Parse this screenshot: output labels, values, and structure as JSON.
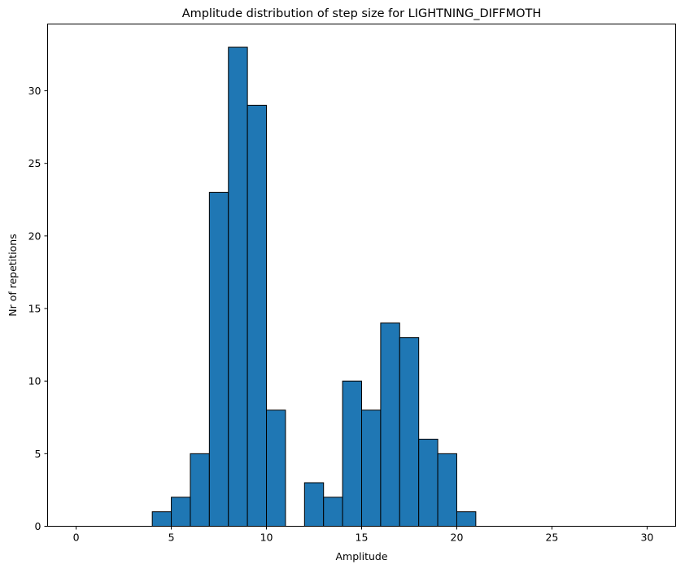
{
  "chart_data": {
    "type": "bar",
    "title": "Amplitude distribution of step size for LIGHTNING_DIFFMOTH",
    "xlabel": "Amplitude",
    "ylabel": "Nr of repetitions",
    "xlim": [
      -1.5,
      31.5
    ],
    "ylim": [
      0,
      34.6
    ],
    "xticks": [
      0,
      5,
      10,
      15,
      20,
      25,
      30
    ],
    "yticks": [
      0,
      5,
      10,
      15,
      20,
      25,
      30
    ],
    "grid": false,
    "bar_color": "#1f77b4",
    "edge_color": "#000000",
    "bins": [
      {
        "x0": 4,
        "x1": 5,
        "value": 1
      },
      {
        "x0": 5,
        "x1": 6,
        "value": 2
      },
      {
        "x0": 6,
        "x1": 7,
        "value": 5
      },
      {
        "x0": 7,
        "x1": 8,
        "value": 23
      },
      {
        "x0": 8,
        "x1": 9,
        "value": 33
      },
      {
        "x0": 9,
        "x1": 10,
        "value": 29
      },
      {
        "x0": 10,
        "x1": 11,
        "value": 8
      },
      {
        "x0": 12,
        "x1": 13,
        "value": 3
      },
      {
        "x0": 13,
        "x1": 14,
        "value": 2
      },
      {
        "x0": 14,
        "x1": 15,
        "value": 10
      },
      {
        "x0": 15,
        "x1": 16,
        "value": 8
      },
      {
        "x0": 16,
        "x1": 17,
        "value": 14
      },
      {
        "x0": 17,
        "x1": 18,
        "value": 13
      },
      {
        "x0": 18,
        "x1": 19,
        "value": 6
      },
      {
        "x0": 19,
        "x1": 20,
        "value": 5
      },
      {
        "x0": 20,
        "x1": 21,
        "value": 1
      }
    ]
  }
}
